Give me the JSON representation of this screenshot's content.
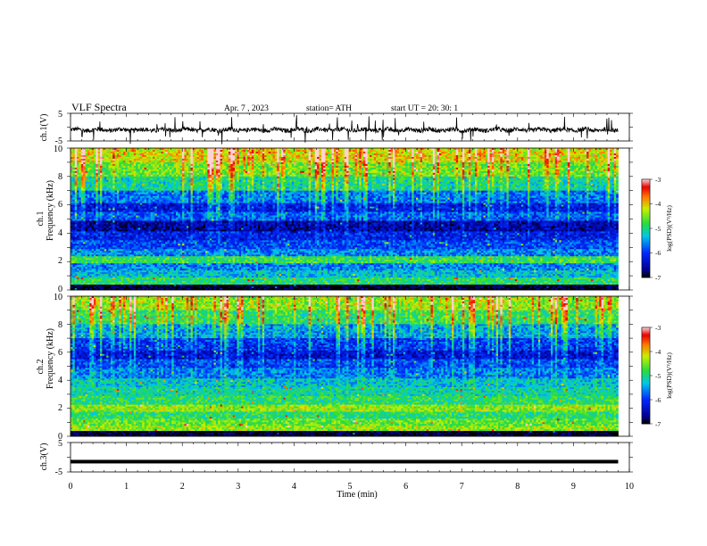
{
  "header": {
    "title": "VLF  Spectra",
    "date": "Apr. 7  , 2023",
    "station": "station= ATH",
    "start": "start  UT  =   20: 30: 1"
  },
  "chart_data": [
    {
      "type": "line",
      "ylabel": "ch.1(V)",
      "ylim": [
        -5,
        5
      ],
      "y_ticks": [
        "5",
        "-5"
      ],
      "signal": "noisy waveform around -1 V with sporadic spikes",
      "color": "#000000"
    },
    {
      "type": "heatmap",
      "ylabel": "ch.1",
      "ylabel2": "Frequency  (kHz)",
      "ylim": [
        0,
        10
      ],
      "y_ticks": [
        "10",
        "8",
        "6",
        "4",
        "2",
        "0"
      ],
      "colorbar": {
        "label": "log(PSD)(V²/Hz)",
        "range": [
          -7,
          -3
        ],
        "ticks": [
          "-3",
          "-4",
          "-5",
          "-6",
          "-7"
        ]
      },
      "rows": [
        {
          "f": 9.5,
          "level": -4.3
        },
        {
          "f": 8.5,
          "level": -4.7
        },
        {
          "f": 7.5,
          "level": -5.2
        },
        {
          "f": 6.5,
          "level": -5.8
        },
        {
          "f": 5.8,
          "level": -6.3
        },
        {
          "f": 5.2,
          "level": -5.9
        },
        {
          "f": 4.5,
          "level": -6.6
        },
        {
          "f": 3.8,
          "level": -6.2
        },
        {
          "f": 3.2,
          "level": -5.9
        },
        {
          "f": 2.6,
          "level": -5.6
        },
        {
          "f": 2.1,
          "level": -4.8
        },
        {
          "f": 1.6,
          "level": -5.6
        },
        {
          "f": 1.1,
          "level": -5.3
        },
        {
          "f": 0.6,
          "level": -4.9
        },
        {
          "f": 0.15,
          "level": -7.0
        }
      ]
    },
    {
      "type": "heatmap",
      "ylabel": "ch.2",
      "ylabel2": "Frequency  (kHz)",
      "ylim": [
        0,
        10
      ],
      "y_ticks": [
        "10",
        "8",
        "6",
        "4",
        "2",
        "0"
      ],
      "colorbar": {
        "label": "log(PSD)(V²/Hz)",
        "range": [
          -7,
          -3
        ],
        "ticks": [
          "-3",
          "-4",
          "-5",
          "-6",
          "-7"
        ]
      },
      "rows": [
        {
          "f": 9.5,
          "level": -4.6
        },
        {
          "f": 8.5,
          "level": -5.0
        },
        {
          "f": 7.5,
          "level": -5.6
        },
        {
          "f": 6.5,
          "level": -6.1
        },
        {
          "f": 5.8,
          "level": -6.4
        },
        {
          "f": 5.2,
          "level": -6.0
        },
        {
          "f": 4.5,
          "level": -5.7
        },
        {
          "f": 3.8,
          "level": -5.3
        },
        {
          "f": 3.2,
          "level": -5.1
        },
        {
          "f": 2.6,
          "level": -4.9
        },
        {
          "f": 2.0,
          "level": -4.4
        },
        {
          "f": 1.5,
          "level": -4.9
        },
        {
          "f": 1.0,
          "level": -4.6
        },
        {
          "f": 0.5,
          "level": -4.4
        },
        {
          "f": 0.15,
          "level": -7.0
        }
      ]
    },
    {
      "type": "line",
      "ylabel": "ch.3(V)",
      "ylim": [
        -5,
        5
      ],
      "y_ticks": [
        "5",
        "-5"
      ],
      "xlabel": "Time  (min)",
      "xlim": [
        0,
        10
      ],
      "x_ticks": [
        "0",
        "1",
        "2",
        "3",
        "4",
        "5",
        "6",
        "7",
        "8",
        "9",
        "10"
      ],
      "signal": "flat thick trace at about -1.5 V",
      "color": "#000000"
    }
  ]
}
